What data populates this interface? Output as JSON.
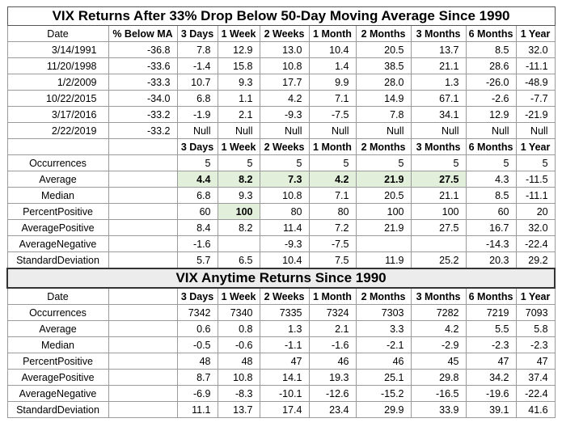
{
  "table1": {
    "title": "VIX Returns After 33% Drop Below 50-Day Moving Average Since 1990",
    "header": [
      "Date",
      "% Below MA",
      "3 Days",
      "1 Week",
      "2 Weeks",
      "1 Month",
      "2 Months",
      "3 Months",
      "6 Months",
      "1 Year"
    ],
    "rows": [
      [
        "3/14/1991",
        "-36.8",
        "7.8",
        "12.9",
        "13.0",
        "10.4",
        "20.5",
        "13.7",
        "8.5",
        "32.0"
      ],
      [
        "11/20/1998",
        "-33.6",
        "-1.4",
        "15.8",
        "10.8",
        "1.4",
        "38.5",
        "21.1",
        "28.6",
        "-11.1"
      ],
      [
        "1/2/2009",
        "-33.3",
        "10.7",
        "9.3",
        "17.7",
        "9.9",
        "28.0",
        "1.3",
        "-26.0",
        "-48.9"
      ],
      [
        "10/22/2015",
        "-34.0",
        "6.8",
        "1.1",
        "4.2",
        "7.1",
        "14.9",
        "67.1",
        "-2.6",
        "-7.7"
      ],
      [
        "3/17/2016",
        "-33.2",
        "-1.9",
        "2.1",
        "-9.3",
        "-7.5",
        "7.8",
        "34.1",
        "12.9",
        "-21.9"
      ],
      [
        "2/22/2019",
        "-33.2",
        "Null",
        "Null",
        "Null",
        "Null",
        "Null",
        "Null",
        "Null",
        "Null"
      ]
    ],
    "stats_header": [
      "",
      "",
      "3 Days",
      "1 Week",
      "2 Weeks",
      "1 Month",
      "2 Months",
      "3 Months",
      "6 Months",
      "1 Year"
    ],
    "stats": [
      {
        "label": "Occurrences",
        "values": [
          "5",
          "5",
          "5",
          "5",
          "5",
          "5",
          "5",
          "5"
        ],
        "highlight": []
      },
      {
        "label": "Average",
        "values": [
          "4.4",
          "8.2",
          "7.3",
          "4.2",
          "21.9",
          "27.5",
          "4.3",
          "-11.5"
        ],
        "highlight": [
          0,
          1,
          2,
          3,
          4,
          5
        ]
      },
      {
        "label": "Median",
        "values": [
          "6.8",
          "9.3",
          "10.8",
          "7.1",
          "20.5",
          "21.1",
          "8.5",
          "-11.1"
        ],
        "highlight": []
      },
      {
        "label": "PercentPositive",
        "values": [
          "60",
          "100",
          "80",
          "80",
          "100",
          "100",
          "60",
          "20"
        ],
        "highlight": [
          1
        ]
      },
      {
        "label": "AveragePositive",
        "values": [
          "8.4",
          "8.2",
          "11.4",
          "7.2",
          "21.9",
          "27.5",
          "16.7",
          "32.0"
        ],
        "highlight": []
      },
      {
        "label": "AverageNegative",
        "values": [
          "-1.6",
          "",
          "-9.3",
          "-7.5",
          "",
          "",
          "-14.3",
          "-22.4"
        ],
        "highlight": []
      },
      {
        "label": "StandardDeviation",
        "values": [
          "5.7",
          "6.5",
          "10.4",
          "7.5",
          "11.9",
          "25.2",
          "20.3",
          "29.2"
        ],
        "highlight": []
      }
    ]
  },
  "table2": {
    "title": "VIX Anytime Returns Since 1990",
    "header": [
      "Date",
      "",
      "3 Days",
      "1 Week",
      "2 Weeks",
      "1 Month",
      "2 Months",
      "3 Months",
      "6 Months",
      "1 Year"
    ],
    "stats": [
      {
        "label": "Occurrences",
        "values": [
          "7342",
          "7340",
          "7335",
          "7324",
          "7303",
          "7282",
          "7219",
          "7093"
        ]
      },
      {
        "label": "Average",
        "values": [
          "0.6",
          "0.8",
          "1.3",
          "2.1",
          "3.3",
          "4.2",
          "5.5",
          "5.8"
        ]
      },
      {
        "label": "Median",
        "values": [
          "-0.5",
          "-0.6",
          "-1.1",
          "-1.6",
          "-2.1",
          "-2.9",
          "-2.3",
          "-2.3"
        ]
      },
      {
        "label": "PercentPositive",
        "values": [
          "48",
          "48",
          "47",
          "46",
          "46",
          "45",
          "47",
          "47"
        ]
      },
      {
        "label": "AveragePositive",
        "values": [
          "8.7",
          "10.8",
          "14.1",
          "19.3",
          "25.1",
          "29.8",
          "34.2",
          "37.4"
        ]
      },
      {
        "label": "AverageNegative",
        "values": [
          "-6.9",
          "-8.3",
          "-10.1",
          "-12.6",
          "-15.2",
          "-16.5",
          "-19.6",
          "-22.4"
        ]
      },
      {
        "label": "StandardDeviation",
        "values": [
          "11.1",
          "13.7",
          "17.4",
          "23.4",
          "29.9",
          "33.9",
          "39.1",
          "41.6"
        ]
      }
    ]
  },
  "colors": {
    "highlight": "#e2efda",
    "border": "#9a9a9a"
  }
}
